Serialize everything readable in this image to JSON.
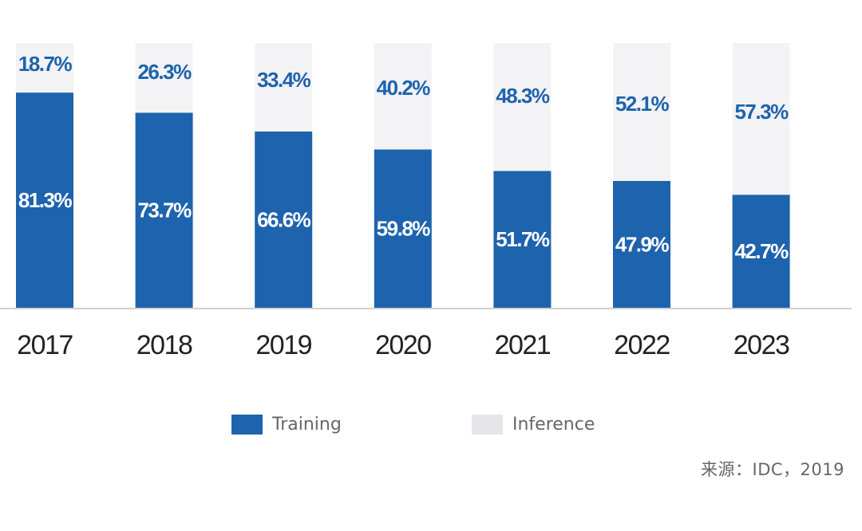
{
  "chart_data": {
    "type": "bar",
    "stacked": true,
    "title": "",
    "xlabel": "",
    "ylabel": "",
    "ylim": [
      0,
      100
    ],
    "unit": "%",
    "grid": false,
    "categories": [
      "2017",
      "2018",
      "2019",
      "2020",
      "2021",
      "2022",
      "2023"
    ],
    "series": [
      {
        "name": "Training",
        "color": "#1e63ad",
        "label_color": "#ffffff",
        "values": [
          81.3,
          73.7,
          66.6,
          59.8,
          51.7,
          47.9,
          42.7
        ],
        "labels": [
          "81.3%",
          "73.7%",
          "66.6%",
          "59.8%",
          "51.7%",
          "47.9%",
          "42.7%"
        ]
      },
      {
        "name": "Inference",
        "color": "#f3f3f5",
        "label_color": "#1e63ad",
        "values": [
          18.7,
          26.3,
          33.4,
          40.2,
          48.3,
          52.1,
          57.3
        ],
        "labels": [
          "18.7%",
          "26.3%",
          "33.4%",
          "40.2%",
          "48.3%",
          "52.1%",
          "57.3%"
        ]
      }
    ],
    "legend": {
      "position": "bottom",
      "items": [
        {
          "label": "Training",
          "color": "#1e63ad"
        },
        {
          "label": "Inference",
          "color": "#e6e6ea"
        }
      ]
    },
    "source": "来源：IDC，2019"
  }
}
